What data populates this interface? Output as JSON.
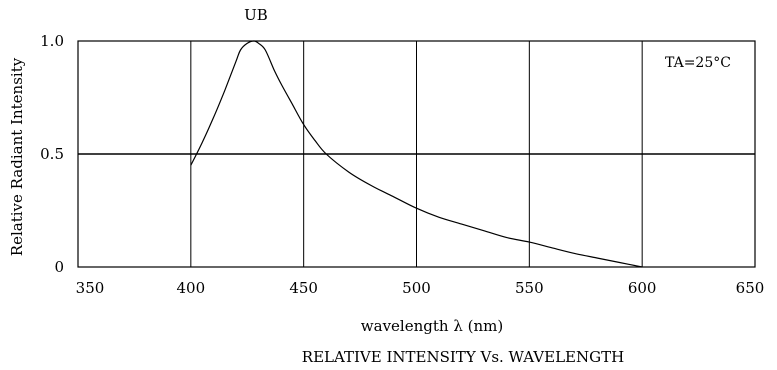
{
  "chart_data": {
    "type": "line",
    "title": "RELATIVE INTENSITY Vs. WAVELENGTH",
    "xlabel": "wavelength λ (nm)",
    "ylabel": "Relative Radiant Intensity",
    "xlim": [
      350,
      650
    ],
    "ylim": [
      0,
      1.0
    ],
    "x_ticks": [
      350,
      400,
      450,
      500,
      550,
      600,
      650
    ],
    "x_tick_labels": [
      "350",
      "400",
      "450",
      "500",
      "550",
      "600",
      "650"
    ],
    "y_ticks": [
      0,
      0.5,
      1.0
    ],
    "y_tick_labels": [
      "0",
      "0.5",
      "1.0"
    ],
    "grid": true,
    "annotation": "TA=25°C",
    "series": [
      {
        "name": "UB",
        "x": [
          400,
          405,
          410,
          415,
          420,
          422,
          425,
          428,
          430,
          433,
          437,
          440,
          445,
          450,
          455,
          460,
          470,
          480,
          490,
          500,
          510,
          520,
          530,
          540,
          550,
          560,
          570,
          580,
          590,
          600
        ],
        "y": [
          0.45,
          0.55,
          0.66,
          0.78,
          0.91,
          0.96,
          0.99,
          1.0,
          0.99,
          0.96,
          0.87,
          0.81,
          0.72,
          0.63,
          0.56,
          0.5,
          0.42,
          0.36,
          0.31,
          0.26,
          0.22,
          0.19,
          0.16,
          0.13,
          0.11,
          0.085,
          0.06,
          0.04,
          0.02,
          0.0
        ]
      }
    ]
  }
}
